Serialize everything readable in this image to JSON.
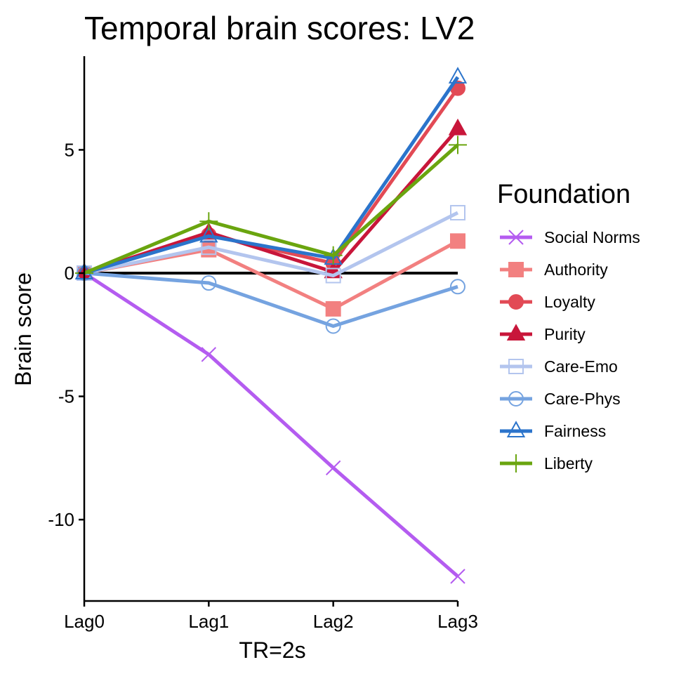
{
  "chart_data": {
    "type": "line",
    "title": "Temporal brain scores: LV2",
    "xlabel": "TR=2s",
    "ylabel": "Brain score",
    "categories": [
      "Lag0",
      "Lag1",
      "Lag2",
      "Lag3"
    ],
    "ylim": [
      -13.3,
      8.8
    ],
    "yticks": [
      -10,
      -5,
      0,
      5
    ],
    "ytick_labels": [
      "-10",
      "-5",
      "0",
      "5"
    ],
    "reference_line": 0,
    "grid": false,
    "legend": {
      "title": "Foundation",
      "placement": "right"
    },
    "series": [
      {
        "name": "Social Norms",
        "color": "#b45cf0",
        "marker": "cross-x",
        "filled": false,
        "values": [
          0,
          -3.3,
          -7.9,
          -12.3
        ]
      },
      {
        "name": "Authority",
        "color": "#f28080",
        "marker": "square",
        "filled": true,
        "values": [
          0,
          0.95,
          -1.45,
          1.3
        ]
      },
      {
        "name": "Loyalty",
        "color": "#e24a55",
        "marker": "circle",
        "filled": true,
        "values": [
          0,
          1.55,
          0.4,
          7.5
        ]
      },
      {
        "name": "Purity",
        "color": "#c8163a",
        "marker": "triangle",
        "filled": true,
        "values": [
          0,
          1.65,
          0.05,
          5.85
        ]
      },
      {
        "name": "Care-Emo",
        "color": "#b3c5ee",
        "marker": "square",
        "filled": false,
        "values": [
          0,
          1.05,
          -0.1,
          2.45
        ]
      },
      {
        "name": "Care-Phys",
        "color": "#75a3e0",
        "marker": "circle",
        "filled": false,
        "values": [
          0,
          -0.4,
          -2.15,
          -0.55
        ]
      },
      {
        "name": "Fairness",
        "color": "#2b74cb",
        "marker": "triangle",
        "filled": false,
        "values": [
          0,
          1.5,
          0.6,
          7.95
        ]
      },
      {
        "name": "Liberty",
        "color": "#6aa50f",
        "marker": "plus",
        "filled": false,
        "values": [
          0,
          2.1,
          0.72,
          5.2
        ]
      }
    ]
  }
}
